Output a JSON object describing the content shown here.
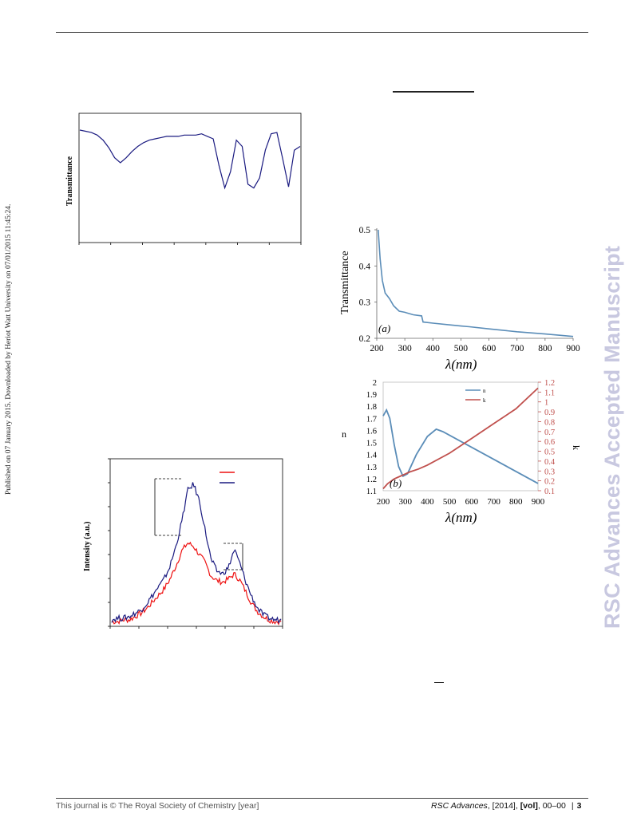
{
  "header": {
    "rule_color": "#333333"
  },
  "side_note": "Published on 07 January 2015. Downloaded by Heriot Watt University on 07/01/2015 11:45:24.",
  "watermark": "RSC Advances Accepted Manuscript",
  "footer": {
    "left": "This journal is © The Royal Society of Chemistry [year]",
    "journal": "RSC Advances",
    "year": ", [2014], ",
    "vol": "[vol]",
    "pages": ", 00–00",
    "separator": "|",
    "page_number": "3"
  },
  "colors": {
    "navy": "#1a1a80",
    "red": "#ee1111",
    "blue_line": "#5b8db8",
    "red_line": "#c0504d",
    "watermark": "#c8c8e0"
  },
  "chart_data": [
    {
      "type": "line",
      "ylabel": "Transmittance",
      "xlabel": "",
      "series": [
        {
          "values": [
            0.88,
            0.87,
            0.86,
            0.84,
            0.8,
            0.74,
            0.66,
            0.62,
            0.66,
            0.71,
            0.75,
            0.78,
            0.8,
            0.81,
            0.82,
            0.83,
            0.83,
            0.83,
            0.84,
            0.84,
            0.84,
            0.85,
            0.83,
            0.81,
            0.6,
            0.42,
            0.55,
            0.8,
            0.75,
            0.45,
            0.42,
            0.5,
            0.72,
            0.85,
            0.86,
            0.65,
            0.43,
            0.72,
            0.75
          ]
        }
      ],
      "color": "#1a1a80"
    },
    {
      "type": "line",
      "xlabel": "λ(nm)",
      "ylabel": "Transmittance",
      "panel_label": "(a)",
      "x_ticks": [
        "200",
        "300",
        "400",
        "500",
        "600",
        "700",
        "800",
        "900"
      ],
      "y_ticks": [
        "0.2",
        "0.3",
        "0.4",
        "0.5"
      ],
      "xlim": [
        200,
        900
      ],
      "ylim": [
        0.2,
        0.5
      ],
      "series": [
        {
          "x": [
            205,
            212,
            220,
            230,
            245,
            260,
            280,
            300,
            330,
            360,
            365,
            400,
            450,
            500,
            530,
            600,
            700,
            800,
            900
          ],
          "y": [
            0.5,
            0.42,
            0.36,
            0.325,
            0.31,
            0.29,
            0.275,
            0.272,
            0.265,
            0.262,
            0.245,
            0.242,
            0.238,
            0.234,
            0.232,
            0.226,
            0.218,
            0.212,
            0.205
          ]
        }
      ]
    },
    {
      "type": "line",
      "xlabel": "λ(nm)",
      "ylabel": "n",
      "ylabel_right": "k",
      "panel_label": "(b)",
      "x_ticks": [
        "200",
        "300",
        "400",
        "500",
        "600",
        "700",
        "800",
        "900"
      ],
      "y_ticks": [
        "1.1",
        "1.2",
        "1.3",
        "1.4",
        "1.5",
        "1.6",
        "1.7",
        "1.8",
        "1.9",
        "2"
      ],
      "y_ticks_right": [
        "0.1",
        "0.2",
        "0.3",
        "0.4",
        "0.5",
        "0.6",
        "0.7",
        "0.8",
        "0.9",
        "1",
        "1.1",
        "1.2"
      ],
      "xlim": [
        200,
        900
      ],
      "ylim": [
        1.1,
        2.0
      ],
      "ylim_right": [
        0.1,
        1.2
      ],
      "legend": [
        "n",
        "k"
      ],
      "series": [
        {
          "name": "n",
          "x": [
            200,
            215,
            230,
            250,
            270,
            290,
            310,
            350,
            400,
            440,
            470,
            900
          ],
          "y": [
            1.72,
            1.77,
            1.7,
            1.48,
            1.3,
            1.22,
            1.24,
            1.4,
            1.55,
            1.61,
            1.59,
            1.16
          ]
        },
        {
          "name": "k",
          "x": [
            200,
            220,
            250,
            280,
            320,
            360,
            400,
            500,
            600,
            700,
            800,
            900
          ],
          "y": [
            0.12,
            0.17,
            0.22,
            0.25,
            0.29,
            0.32,
            0.36,
            0.48,
            0.63,
            0.78,
            0.93,
            1.14
          ]
        }
      ]
    },
    {
      "type": "line",
      "ylabel": "Intensity (a.u.)",
      "xlabel": "",
      "series": [
        {
          "color": "#ee1111",
          "values": [
            0.02,
            0.02,
            0.03,
            0.03,
            0.05,
            0.07,
            0.1,
            0.14,
            0.18,
            0.22,
            0.28,
            0.36,
            0.45,
            0.5,
            0.48,
            0.43,
            0.38,
            0.3,
            0.27,
            0.26,
            0.28,
            0.31,
            0.27,
            0.2,
            0.13,
            0.08,
            0.05,
            0.03,
            0.02,
            0.02
          ]
        },
        {
          "color": "#1a1a80",
          "values": [
            0.03,
            0.04,
            0.04,
            0.05,
            0.07,
            0.09,
            0.13,
            0.18,
            0.23,
            0.28,
            0.36,
            0.48,
            0.63,
            0.82,
            0.86,
            0.76,
            0.58,
            0.4,
            0.33,
            0.31,
            0.35,
            0.46,
            0.37,
            0.26,
            0.17,
            0.1,
            0.06,
            0.04,
            0.03,
            0.03
          ]
        }
      ]
    }
  ]
}
